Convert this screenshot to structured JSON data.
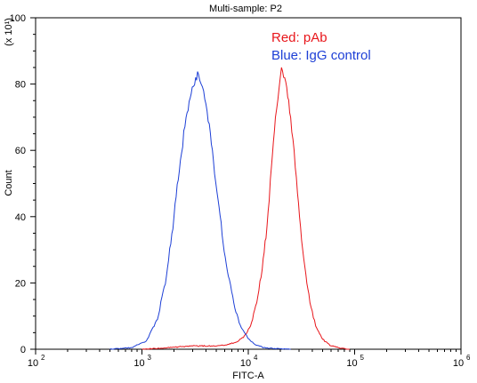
{
  "chart_data": {
    "type": "line",
    "title": "Multi-sample: P2",
    "xlabel": "FITC-A",
    "ylabel": "Count",
    "y_multiplier": "(x 10¹)",
    "x_scale": "log",
    "xlim": [
      100,
      1000000
    ],
    "ylim": [
      0,
      100
    ],
    "x_ticks": [
      {
        "value": 100,
        "base": "10",
        "exp": "2"
      },
      {
        "value": 1000,
        "base": "10",
        "exp": "3"
      },
      {
        "value": 10000,
        "base": "10",
        "exp": "4"
      },
      {
        "value": 100000,
        "base": "10",
        "exp": "5"
      },
      {
        "value": 1000000,
        "base": "10",
        "exp": "6"
      }
    ],
    "y_ticks": [
      0,
      20,
      40,
      60,
      80,
      100
    ],
    "grid": false,
    "legend_position": "top-right",
    "annotations": [
      {
        "text": "Red: pAb",
        "color": "#e8161b"
      },
      {
        "text": "Blue: IgG control",
        "color": "#1d3fd6"
      }
    ],
    "series": [
      {
        "color": "#e8161b",
        "x": [
          1000,
          1500,
          2000,
          3000,
          4500,
          6000,
          7500,
          9000,
          10500,
          12000,
          13500,
          15000,
          16500,
          18000,
          19500,
          20500,
          21500,
          23000,
          25000,
          27000,
          29000,
          31000,
          34000,
          38000,
          43000,
          50000,
          60000,
          75000,
          90000
        ],
        "y": [
          0,
          0.3,
          0.6,
          1,
          1,
          1.2,
          2,
          3.5,
          7,
          14,
          24,
          37,
          55,
          70,
          79,
          85,
          82,
          79,
          70,
          60,
          47,
          37,
          25,
          14,
          7,
          3,
          1,
          0.3,
          0
        ]
      },
      {
        "color": "#1d3fd6",
        "x": [
          500,
          800,
          1100,
          1400,
          1700,
          2000,
          2300,
          2600,
          2900,
          3200,
          3400,
          3600,
          3800,
          4000,
          4300,
          4700,
          5200,
          5800,
          6500,
          7300,
          8200,
          9200,
          10500,
          12000,
          14000,
          17000,
          25000
        ],
        "y": [
          0,
          0.5,
          2.5,
          9,
          22,
          40,
          57,
          70,
          77,
          82,
          83,
          80,
          78,
          74,
          68,
          57,
          45,
          32,
          22,
          14,
          8,
          5,
          2.5,
          1.2,
          0.5,
          0.2,
          0
        ]
      }
    ]
  }
}
